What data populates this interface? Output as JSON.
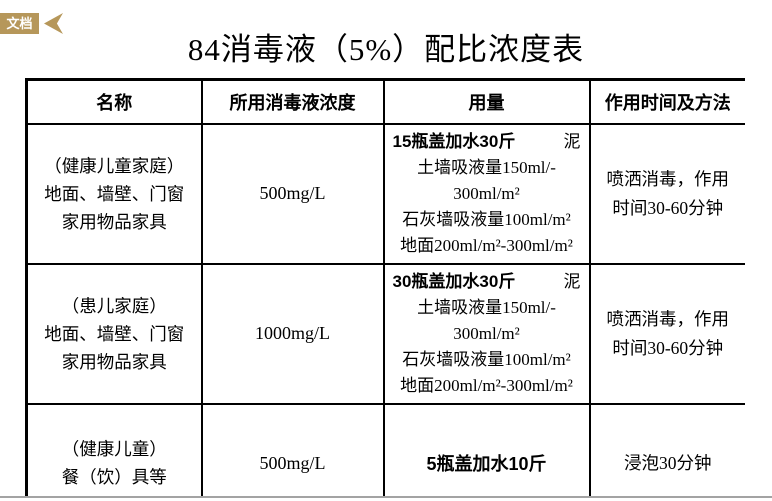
{
  "badge": {
    "label": "文档"
  },
  "title": "84消毒液（5%）配比浓度表",
  "colors": {
    "badge_gold": "#b6975a",
    "table_border": "#000000",
    "bottom_divider": "#a3a3a3"
  },
  "table": {
    "headers": [
      "名称",
      "所用消毒液浓度",
      "用量",
      "作用时间及方法"
    ],
    "rows": [
      {
        "name_lines": [
          "（健康儿童家庭）",
          "地面、墙壁、门窗",
          "家用物品家具"
        ],
        "concentration": "500mg/L",
        "dosage_bold": "15瓶盖加水30斤",
        "dosage_tail": "泥",
        "dosage_lines": [
          "土墙吸液量150ml/-",
          "300ml/m²",
          "石灰墙吸液量100ml/m²",
          "地面200ml/m²-300ml/m²"
        ],
        "method_lines": [
          "喷洒消毒，作用",
          "时间30-60分钟"
        ]
      },
      {
        "name_lines": [
          "（患儿家庭）",
          "地面、墙壁、门窗",
          "家用物品家具"
        ],
        "concentration": "1000mg/L",
        "dosage_bold": "30瓶盖加水30斤",
        "dosage_tail": "泥",
        "dosage_lines": [
          "土墙吸液量150ml/-",
          "300ml/m²",
          "石灰墙吸液量100ml/m²",
          "地面200ml/m²-300ml/m²"
        ],
        "method_lines": [
          "喷洒消毒，作用",
          "时间30-60分钟"
        ]
      },
      {
        "name_lines": [
          "（健康儿童）",
          "餐（饮）具等"
        ],
        "concentration": "500mg/L",
        "dosage_bold": "5瓶盖加水10斤",
        "method": "浸泡30分钟"
      }
    ]
  }
}
